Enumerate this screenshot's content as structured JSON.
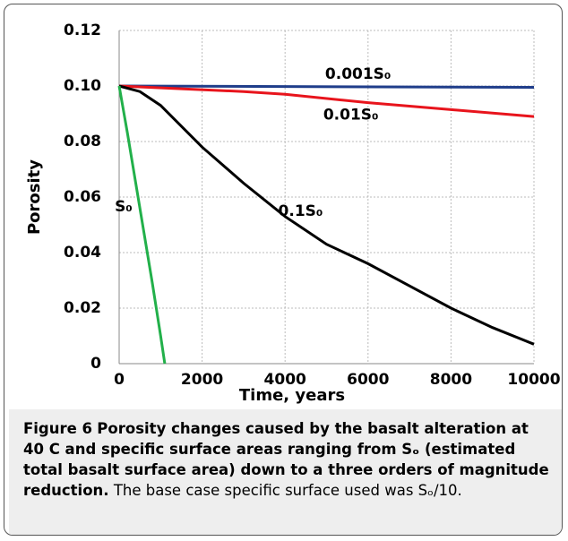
{
  "chart_data": {
    "type": "line",
    "xlabel": "Time, years",
    "ylabel": "Porosity",
    "xlim": [
      0,
      10000
    ],
    "xticks": [
      0,
      2000,
      4000,
      6000,
      8000,
      10000
    ],
    "ylim": [
      0,
      0.12
    ],
    "yticks": [
      0,
      0.02,
      0.04,
      0.06,
      0.08,
      {
        "value": 0.1,
        "label": "0.10"
      },
      0.12
    ],
    "grid": true,
    "series": [
      {
        "name": "0.001S₀",
        "color": "#1f3d8a",
        "x": [
          0,
          10000
        ],
        "values": [
          0.1,
          0.0995
        ]
      },
      {
        "name": "0.01S₀",
        "color": "#e8141c",
        "x": [
          0,
          3000,
          4000,
          6000,
          8000,
          10000
        ],
        "values": [
          0.1,
          0.098,
          0.097,
          0.094,
          0.0915,
          0.089
        ]
      },
      {
        "name": "0.1S₀",
        "color": "#000000",
        "x": [
          0,
          500,
          1000,
          2000,
          3000,
          4000,
          5000,
          6000,
          7000,
          8000,
          9000,
          10000
        ],
        "values": [
          0.1,
          0.098,
          0.093,
          0.078,
          0.065,
          0.053,
          0.043,
          0.036,
          0.028,
          0.02,
          0.013,
          0.007
        ]
      },
      {
        "name": "S₀",
        "color": "#22b04a",
        "x": [
          0,
          200,
          400,
          600,
          800,
          1000,
          1100
        ],
        "values": [
          0.1,
          0.083,
          0.065,
          0.047,
          0.029,
          0.01,
          0
        ]
      }
    ]
  },
  "caption": {
    "label": "Figure 6",
    "bold_text": "Porosity changes caused by the basalt alteration at 40 C and specific surface areas ranging from Sₒ (estimated total basalt surface area) down to a three orders of magnitude reduction.",
    "text": "The base case specific surface used was Sₒ/10."
  }
}
